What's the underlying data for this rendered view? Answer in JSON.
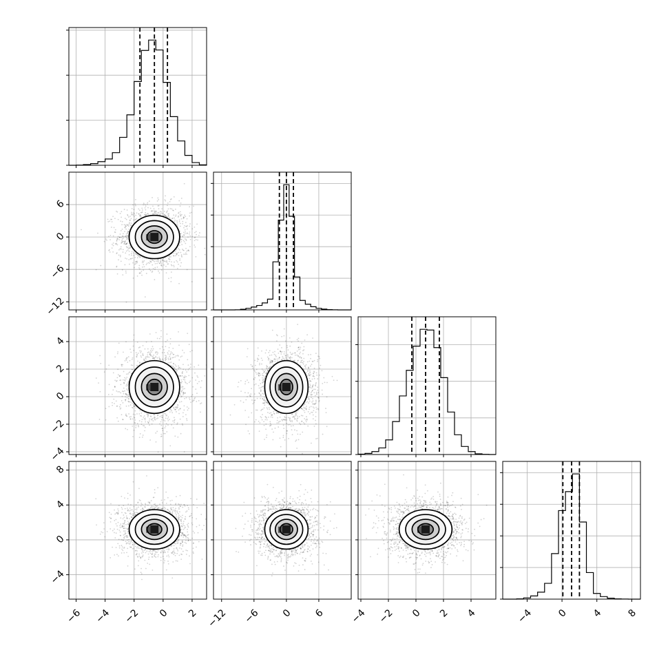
{
  "chart_data": {
    "type": "corner",
    "grid": "on",
    "params": [
      {
        "mean": -0.6,
        "sd": 1.0,
        "range": [
          -6.5,
          3.0
        ],
        "xticks": [
          -6,
          -4,
          -2,
          0,
          2
        ],
        "xtick_labels": [
          "−6",
          "−4",
          "−2",
          "0",
          "2"
        ],
        "yticks": [],
        "ytick_labels": [],
        "quantiles": [
          -1.6,
          -0.6,
          0.3
        ],
        "hist": {
          "edges": [
            -6.5,
            -6.0,
            -5.5,
            -5.0,
            -4.5,
            -4.0,
            -3.5,
            -3.0,
            -2.5,
            -2.0,
            -1.5,
            -1.0,
            -0.5,
            0.0,
            0.5,
            1.0,
            1.5,
            2.0,
            2.5,
            3.0
          ],
          "counts": [
            0,
            2,
            8,
            18,
            40,
            70,
            140,
            310,
            560,
            930,
            1275,
            1390,
            1280,
            920,
            540,
            270,
            110,
            30,
            5
          ]
        }
      },
      {
        "mean": 0.0,
        "sd": 2.3,
        "range": [
          -13.5,
          12.0
        ],
        "xticks": [
          -12,
          -6,
          0,
          6
        ],
        "xtick_labels": [
          "−12",
          "−6",
          "0",
          "6"
        ],
        "yticks": [
          -12,
          -6,
          0,
          6
        ],
        "ytick_labels": [
          "−12",
          "−6",
          "0",
          "6"
        ],
        "quantiles": [
          -1.3,
          0.0,
          1.3
        ],
        "hist": {
          "edges": [
            -13.5,
            -12.5,
            -11.5,
            -10.5,
            -9.5,
            -8.5,
            -7.5,
            -6.5,
            -5.5,
            -4.5,
            -3.5,
            -2.5,
            -1.5,
            -0.5,
            0.5,
            1.5,
            2.5,
            3.5,
            4.5,
            5.5,
            6.5,
            7.5,
            8.5,
            9.5,
            10.5,
            11.5,
            12.0
          ],
          "counts": [
            0,
            0,
            0,
            0,
            2,
            10,
            25,
            45,
            70,
            110,
            170,
            760,
            1420,
            1980,
            1480,
            520,
            150,
            90,
            50,
            25,
            12,
            5,
            2,
            0,
            0,
            0
          ]
        }
      },
      {
        "mean": 0.7,
        "sd": 1.1,
        "range": [
          -4.2,
          5.8
        ],
        "xticks": [
          -4,
          -2,
          0,
          2,
          4
        ],
        "xtick_labels": [
          "−4",
          "−2",
          "0",
          "2",
          "4"
        ],
        "yticks": [
          -4,
          -2,
          0,
          2,
          4
        ],
        "ytick_labels": [
          "−4",
          "−2",
          "0",
          "2",
          "4"
        ],
        "quantiles": [
          -0.3,
          0.7,
          1.7
        ],
        "hist": {
          "edges": [
            -4.2,
            -3.7,
            -3.2,
            -2.7,
            -2.2,
            -1.7,
            -1.2,
            -0.7,
            -0.2,
            0.3,
            0.8,
            1.3,
            1.8,
            2.3,
            2.8,
            3.3,
            3.8,
            4.3,
            4.8,
            5.3,
            5.8
          ],
          "counts": [
            5,
            15,
            40,
            90,
            200,
            450,
            800,
            1150,
            1480,
            1710,
            1700,
            1460,
            1050,
            580,
            270,
            110,
            40,
            10,
            3,
            0
          ]
        }
      },
      {
        "mean": 1.2,
        "sd": 1.3,
        "range": [
          -6.8,
          9.0
        ],
        "xticks": [
          -4,
          0,
          4,
          8
        ],
        "xtick_labels": [
          "−4",
          "0",
          "4",
          "8"
        ],
        "yticks": [
          -4,
          0,
          4,
          8
        ],
        "ytick_labels": [
          "−4",
          "0",
          "4",
          "8"
        ],
        "quantiles": [
          0.1,
          1.1,
          2.0
        ],
        "hist": {
          "edges": [
            -6.8,
            -6.0,
            -5.2,
            -4.4,
            -3.6,
            -2.8,
            -2.0,
            -1.2,
            -0.4,
            0.4,
            1.2,
            2.0,
            2.8,
            3.6,
            4.4,
            5.2,
            6.0,
            6.8,
            7.6,
            8.4,
            9.0
          ],
          "counts": [
            0,
            0,
            5,
            20,
            50,
            110,
            250,
            720,
            1400,
            1700,
            1980,
            1220,
            420,
            90,
            40,
            15,
            4,
            1,
            0,
            0
          ]
        }
      }
    ],
    "pairs": [
      {
        "x": 0,
        "y": 1,
        "rx": 0.75,
        "ry": 0.5,
        "center": [
          -0.6,
          0.0
        ],
        "peak": [
          -0.6,
          0.0
        ]
      },
      {
        "x": 0,
        "y": 2,
        "rx": 0.5,
        "ry": 0.6,
        "center": [
          -0.6,
          0.7
        ],
        "peak": [
          -0.6,
          0.7
        ]
      },
      {
        "x": 1,
        "y": 2,
        "rx": 0.35,
        "ry": 0.6,
        "center": [
          0.0,
          0.7
        ],
        "peak": [
          0.0,
          0.7
        ]
      },
      {
        "x": 0,
        "y": 3,
        "rx": 0.75,
        "ry": 0.55,
        "center": [
          -0.6,
          1.2
        ],
        "peak": [
          -0.6,
          1.2
        ]
      },
      {
        "x": 1,
        "y": 3,
        "rx": 0.35,
        "ry": 0.55,
        "center": [
          0.0,
          1.2
        ],
        "peak": [
          0.0,
          1.2
        ]
      },
      {
        "x": 2,
        "y": 3,
        "rx": 0.75,
        "ry": 0.5,
        "center": [
          0.7,
          1.2
        ],
        "peak": [
          0.7,
          1.2
        ]
      }
    ]
  }
}
